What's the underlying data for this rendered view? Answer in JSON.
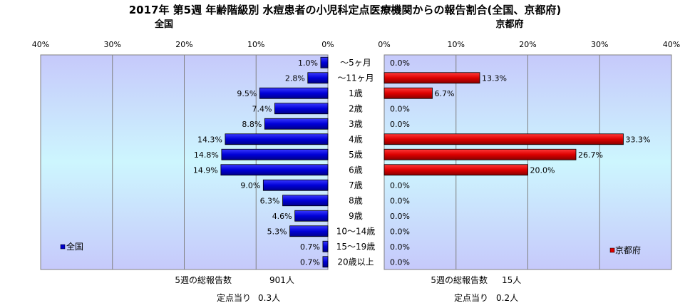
{
  "chart_data": {
    "type": "bar",
    "title": "2017年 第5週 年齢階級別 水痘患者の小児科定点医療機関からの報告割合(全国、京都府)",
    "categories": [
      "～5ヶ月",
      "～11ヶ月",
      "1歳",
      "2歳",
      "3歳",
      "4歳",
      "5歳",
      "6歳",
      "7歳",
      "8歳",
      "9歳",
      "10～14歳",
      "15～19歳",
      "20歳以上"
    ],
    "xlim": [
      0,
      40
    ],
    "x_ticks": [
      "40%",
      "30%",
      "20%",
      "10%",
      "0%",
      "0%",
      "10%",
      "20%",
      "30%",
      "40%"
    ],
    "value_suffix": "%",
    "panels": [
      {
        "title": "全国",
        "legend": "全国",
        "legend_position": "bottom-left",
        "color": "#0000cc",
        "direction": "left",
        "values": [
          1.0,
          2.8,
          9.5,
          7.4,
          8.8,
          14.3,
          14.8,
          14.9,
          9.0,
          6.3,
          4.6,
          5.3,
          0.7,
          0.7
        ],
        "footer": [
          {
            "label": "5週の総報告数",
            "value": "901人"
          },
          {
            "label": "定点当り",
            "value": "0.3人"
          }
        ]
      },
      {
        "title": "京都府",
        "legend": "京都府",
        "legend_position": "bottom-right",
        "color": "#dd0000",
        "direction": "right",
        "values": [
          0.0,
          13.3,
          6.7,
          0.0,
          0.0,
          33.3,
          26.7,
          20.0,
          0.0,
          0.0,
          0.0,
          0.0,
          0.0,
          0.0
        ],
        "footer": [
          {
            "label": "5週の総報告数",
            "value": "15人"
          },
          {
            "label": "定点当り",
            "value": "0.2人"
          }
        ]
      }
    ]
  }
}
